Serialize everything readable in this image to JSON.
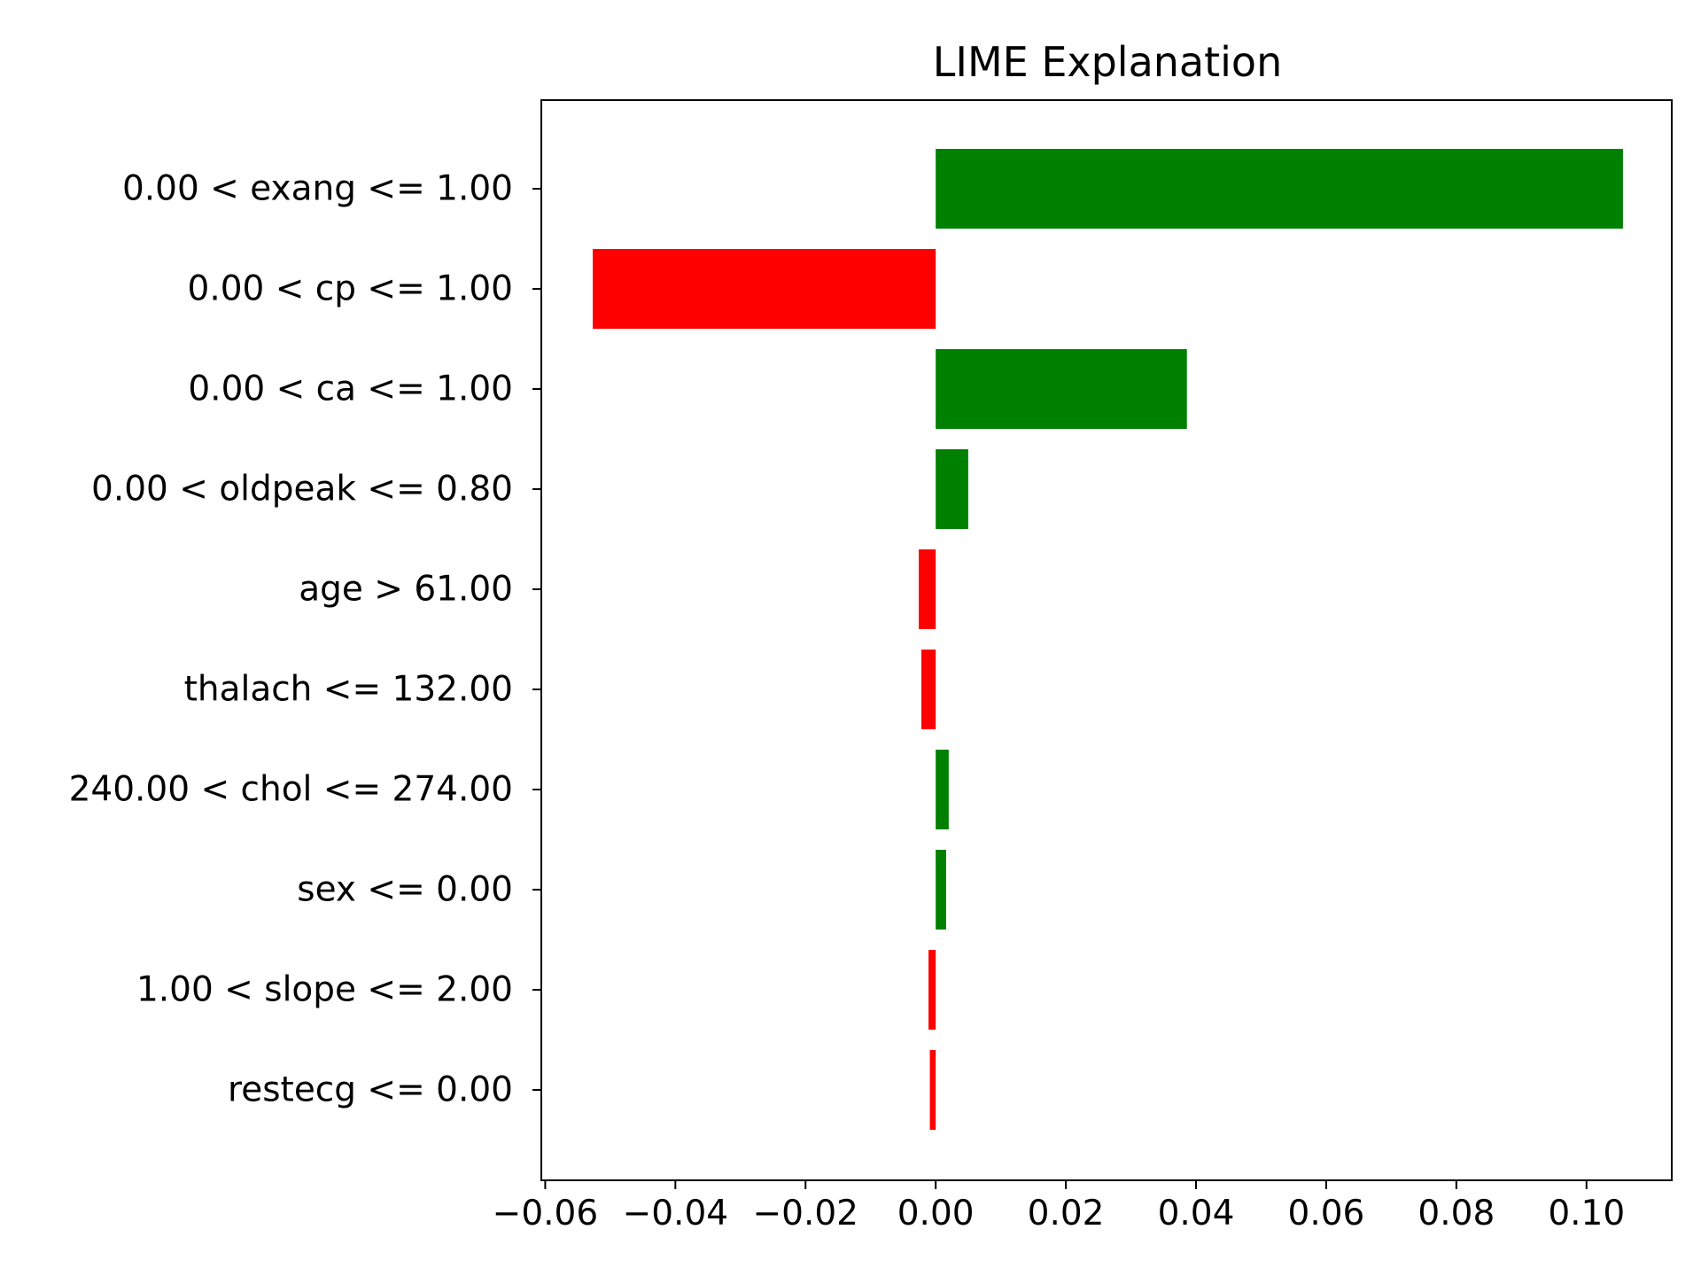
{
  "chart_data": {
    "type": "bar",
    "orientation": "horizontal",
    "title": "LIME Explanation",
    "xlabel": "",
    "ylabel": "",
    "categories": [
      "0.00 < exang <= 1.00",
      "0.00 < cp <= 1.00",
      "0.00 < ca <= 1.00",
      "0.00 < oldpeak <= 0.80",
      "age > 61.00",
      "thalach <= 132.00",
      "240.00 < chol <= 274.00",
      "sex <= 0.00",
      "1.00 < slope <= 2.00",
      "restecg <= 0.00"
    ],
    "values": [
      0.1056,
      -0.0527,
      0.0386,
      0.005,
      -0.0026,
      -0.0022,
      0.002,
      0.0016,
      -0.0011,
      -0.0009
    ],
    "xlim": [
      -0.0606,
      0.1131
    ],
    "xticks": [
      -0.06,
      -0.04,
      -0.02,
      0.0,
      0.02,
      0.04,
      0.06,
      0.08,
      0.1
    ],
    "xtick_labels": [
      "−0.06",
      "−0.04",
      "−0.02",
      "0.00",
      "0.02",
      "0.04",
      "0.06",
      "0.08",
      "0.10"
    ],
    "colors": {
      "positive": "#008000",
      "negative": "#ff0000"
    },
    "grid": false,
    "legend": "none"
  }
}
